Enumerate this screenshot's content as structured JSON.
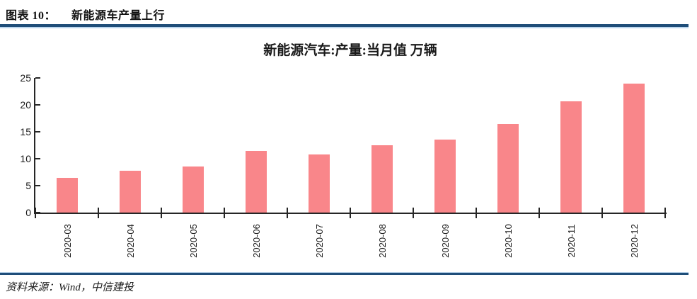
{
  "header": {
    "label": "图表 10：",
    "title": "新能源车产量上行"
  },
  "chart_data": {
    "type": "bar",
    "title": "新能源汽车:产量:当月值 万辆",
    "categories": [
      "2020-03",
      "2020-04",
      "2020-05",
      "2020-06",
      "2020-07",
      "2020-08",
      "2020-09",
      "2020-10",
      "2020-11",
      "2020-12"
    ],
    "values": [
      6.4,
      7.7,
      8.5,
      11.4,
      10.8,
      12.5,
      13.6,
      16.5,
      20.7,
      23.9
    ],
    "xlabel": "",
    "ylabel": "",
    "ylim": [
      0,
      25
    ],
    "yticks": [
      0,
      5,
      10,
      15,
      20,
      25
    ],
    "grid": false,
    "legend": null,
    "bar_color": "#F9868A",
    "axis_color": "#262626"
  },
  "footer": {
    "source": "资料来源：Wind，中信建投"
  },
  "colors": {
    "rule_dark": "#1F4E79",
    "rule_light": "#BDD7EE"
  }
}
